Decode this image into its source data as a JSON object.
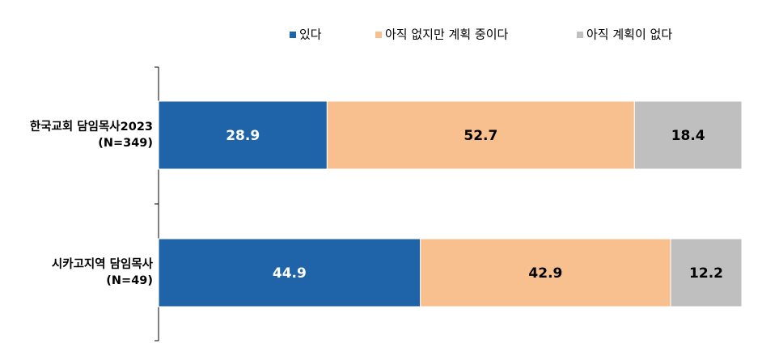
{
  "chart_data": {
    "type": "bar",
    "orientation": "horizontal",
    "stacked": true,
    "percent_stacked": true,
    "legend_position": "top",
    "grid": false,
    "categories": [
      {
        "name": "한국교회 담임목사2023",
        "sub": "(N=349)"
      },
      {
        "name": "시카고지역 담임목사",
        "sub": "(N=49)"
      }
    ],
    "series": [
      {
        "name": "있다",
        "color": "#1F63A8",
        "label_color": "#FFFFFF",
        "values": [
          28.9,
          44.9
        ]
      },
      {
        "name": "아직 없지만 계획 중이다",
        "color": "#F8C08F",
        "label_color": "#000000",
        "values": [
          52.7,
          42.9
        ]
      },
      {
        "name": "아직 계획이 없다",
        "color": "#BFBFBF",
        "label_color": "#000000",
        "values": [
          18.4,
          12.2
        ]
      }
    ],
    "xlim": [
      0,
      100
    ]
  }
}
